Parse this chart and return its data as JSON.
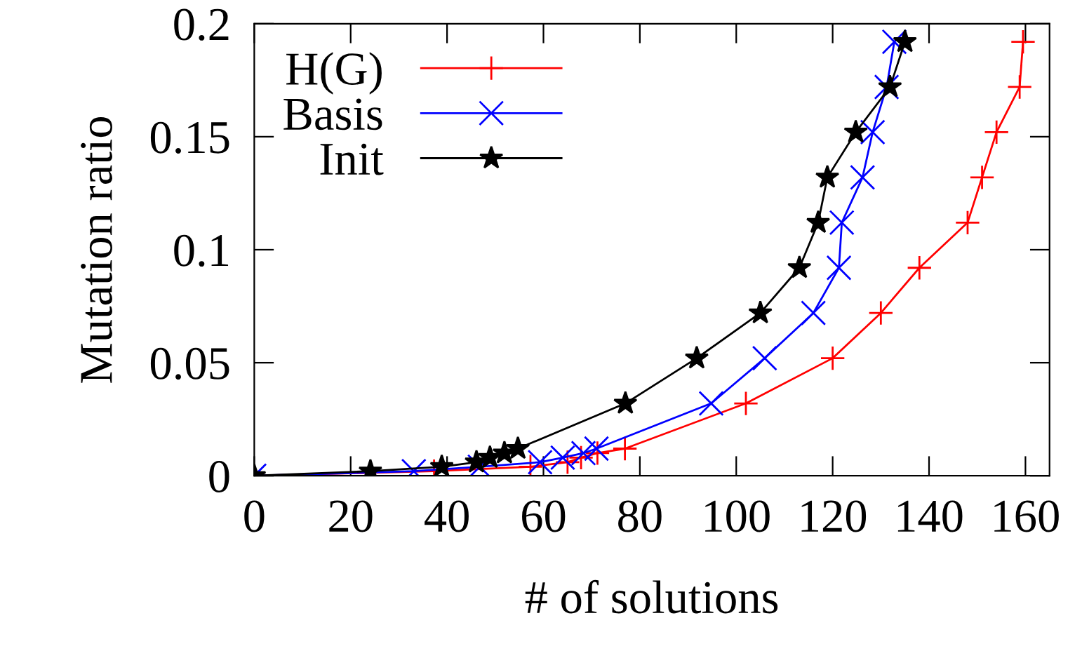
{
  "chart_data": {
    "type": "line",
    "xlabel": "# of solutions",
    "ylabel": "Mutation ratio",
    "xlim": [
      0,
      165
    ],
    "ylim": [
      0,
      0.2
    ],
    "xticks": [
      0,
      20,
      40,
      60,
      80,
      100,
      120,
      140,
      160
    ],
    "yticks": [
      0,
      0.05,
      0.1,
      0.15,
      0.2
    ],
    "grid": false,
    "legend": "top left",
    "series": [
      {
        "name": "H(G)",
        "color": "#ff0000",
        "marker": "plus",
        "x": [
          0,
          37.3,
          57.3,
          65,
          67.8,
          71.2,
          76.9,
          102,
          120,
          130,
          138,
          148,
          151,
          154,
          158.8,
          159.5
        ],
        "values": [
          0,
          0.002,
          0.004,
          0.006,
          0.008,
          0.01,
          0.012,
          0.032,
          0.052,
          0.072,
          0.092,
          0.112,
          0.132,
          0.152,
          0.172,
          0.192
        ]
      },
      {
        "name": "Basis",
        "color": "#0000ff",
        "marker": "cross",
        "x": [
          0,
          33.1,
          46.8,
          59.3,
          64,
          68.3,
          71,
          94.8,
          105.9,
          116,
          121.3,
          121.9,
          126.2,
          128.3,
          131.2,
          132.8
        ],
        "values": [
          0,
          0.002,
          0.004,
          0.006,
          0.008,
          0.01,
          0.012,
          0.032,
          0.052,
          0.072,
          0.092,
          0.112,
          0.132,
          0.152,
          0.172,
          0.192
        ]
      },
      {
        "name": "Init",
        "color": "#000000",
        "marker": "star",
        "x": [
          0,
          24.1,
          38.9,
          46.1,
          48.9,
          51.9,
          54.7,
          77,
          91.8,
          105,
          113.1,
          117,
          118.9,
          124.8,
          131.9,
          135
        ],
        "values": [
          0,
          0.002,
          0.004,
          0.006,
          0.008,
          0.01,
          0.012,
          0.032,
          0.052,
          0.072,
          0.092,
          0.112,
          0.132,
          0.152,
          0.172,
          0.192
        ]
      }
    ]
  }
}
